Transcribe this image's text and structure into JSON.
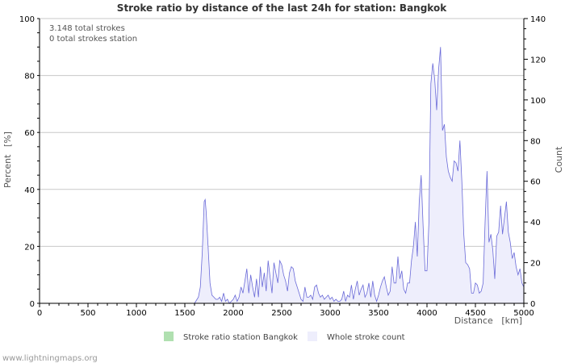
{
  "chart_data": {
    "type": "area",
    "title": "Stroke ratio by distance of the last 24h for station: Bangkok",
    "xlabel": "Distance",
    "xunit": "[km]",
    "ylabel_left": "Percent",
    "yunit_left": "[%]",
    "ylabel_right": "Count",
    "xlim": [
      0,
      5000
    ],
    "ylim_left": [
      0,
      100
    ],
    "ylim_right": [
      0,
      140
    ],
    "x_ticks": [
      0,
      500,
      1000,
      1500,
      2000,
      2500,
      3000,
      3500,
      4000,
      4500,
      5000
    ],
    "y_left_ticks": [
      0,
      20,
      40,
      60,
      80,
      100
    ],
    "y_right_ticks": [
      0,
      20,
      40,
      60,
      80,
      100,
      120,
      140
    ],
    "grid": true,
    "annotations": [
      "3.148 total strokes",
      "0 total strokes station"
    ],
    "legend": [
      {
        "label": "Stroke ratio station Bangkok",
        "color": "#b0e0b0"
      },
      {
        "label": "Whole stroke count",
        "color": "#eeeefc"
      }
    ],
    "legend_position": "bottom",
    "series": [
      {
        "name": "Stroke ratio station Bangkok",
        "axis": "left",
        "x": [
          0,
          5000
        ],
        "values": [
          0,
          0
        ]
      },
      {
        "name": "Whole stroke count",
        "axis": "right",
        "x": [
          1600,
          1640,
          1660,
          1680,
          1700,
          1710,
          1720,
          1740,
          1760,
          1780,
          1800,
          1820,
          1840,
          1860,
          1880,
          1900,
          1920,
          1940,
          1960,
          1980,
          2000,
          2020,
          2040,
          2060,
          2080,
          2100,
          2120,
          2140,
          2160,
          2180,
          2200,
          2220,
          2240,
          2260,
          2280,
          2300,
          2320,
          2340,
          2360,
          2380,
          2400,
          2420,
          2440,
          2460,
          2480,
          2500,
          2520,
          2540,
          2560,
          2580,
          2600,
          2620,
          2640,
          2660,
          2680,
          2700,
          2720,
          2740,
          2760,
          2780,
          2800,
          2820,
          2840,
          2860,
          2880,
          2900,
          2920,
          2940,
          2960,
          2980,
          3000,
          3020,
          3040,
          3060,
          3080,
          3100,
          3120,
          3140,
          3160,
          3180,
          3200,
          3220,
          3240,
          3260,
          3280,
          3300,
          3320,
          3340,
          3360,
          3380,
          3400,
          3420,
          3440,
          3460,
          3480,
          3500,
          3520,
          3540,
          3560,
          3580,
          3600,
          3620,
          3640,
          3660,
          3680,
          3700,
          3720,
          3740,
          3760,
          3780,
          3800,
          3820,
          3840,
          3860,
          3880,
          3900,
          3920,
          3940,
          3960,
          3980,
          4000,
          4020,
          4040,
          4060,
          4080,
          4100,
          4120,
          4140,
          4160,
          4180,
          4200,
          4220,
          4240,
          4260,
          4280,
          4300,
          4320,
          4340,
          4360,
          4380,
          4400,
          4420,
          4440,
          4460,
          4480,
          4500,
          4520,
          4540,
          4560,
          4580,
          4600,
          4620,
          4640,
          4660,
          4680,
          4700,
          4720,
          4740,
          4760,
          4780,
          4800,
          4820,
          4840,
          4860,
          4880,
          4900,
          4920,
          4940,
          4960,
          4980,
          5000
        ],
        "values": [
          0,
          3,
          8,
          25,
          50,
          51,
          45,
          28,
          10,
          4,
          3,
          2,
          2,
          3,
          1,
          5,
          1,
          2,
          0,
          1,
          2,
          4,
          1,
          3,
          8,
          5,
          11,
          17,
          5,
          14,
          8,
          3,
          12,
          3,
          18,
          8,
          15,
          6,
          21,
          13,
          5,
          20,
          15,
          10,
          21,
          19,
          14,
          11,
          6,
          15,
          18,
          17,
          11,
          8,
          5,
          2,
          1,
          8,
          3,
          3,
          4,
          2,
          8,
          9,
          5,
          3,
          4,
          2,
          3,
          4,
          2,
          3,
          1,
          2,
          1,
          1,
          2,
          6,
          1,
          4,
          3,
          9,
          2,
          7,
          11,
          4,
          7,
          9,
          3,
          5,
          10,
          3,
          11,
          4,
          1,
          4,
          8,
          11,
          13,
          8,
          4,
          6,
          18,
          10,
          10,
          23,
          12,
          16,
          7,
          5,
          10,
          10,
          21,
          28,
          40,
          23,
          50,
          63,
          38,
          16,
          16,
          40,
          108,
          118,
          110,
          95,
          115,
          126,
          85,
          88,
          72,
          65,
          62,
          60,
          70,
          69,
          65,
          80,
          60,
          34,
          20,
          19,
          17,
          5,
          5,
          10,
          9,
          5,
          6,
          10,
          40,
          65,
          30,
          34,
          26,
          12,
          33,
          35,
          48,
          34,
          42,
          50,
          35,
          30,
          22,
          25,
          18,
          14,
          17,
          10,
          8
        ]
      }
    ],
    "credit": "www.lightningmaps.org"
  }
}
